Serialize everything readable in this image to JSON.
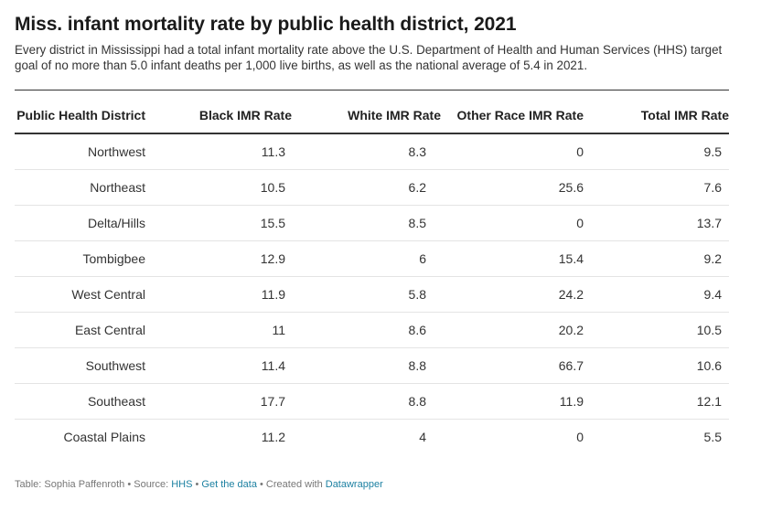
{
  "chart_data": {
    "type": "table",
    "title": "Miss. infant mortality rate by public health district, 2021",
    "subtitle": "Every district in Mississippi had a total infant mortality rate above the U.S. Department of Health and Human Services (HHS) target goal of no more than 5.0 infant deaths per 1,000 live births, as well as the national average of 5.4 in 2021.",
    "columns": [
      "Public Health District",
      "Black IMR Rate",
      "White IMR Rate",
      "Other Race IMR Rate",
      "Total IMR Rate"
    ],
    "rows": [
      [
        "Northwest",
        "11.3",
        "8.3",
        "0",
        "9.5"
      ],
      [
        "Northeast",
        "10.5",
        "6.2",
        "25.6",
        "7.6"
      ],
      [
        "Delta/Hills",
        "15.5",
        "8.5",
        "0",
        "13.7"
      ],
      [
        "Tombigbee",
        "12.9",
        "6",
        "15.4",
        "9.2"
      ],
      [
        "West Central",
        "11.9",
        "5.8",
        "24.2",
        "9.4"
      ],
      [
        "East Central",
        "11",
        "8.6",
        "20.2",
        "10.5"
      ],
      [
        "Southwest",
        "11.4",
        "8.8",
        "66.7",
        "10.6"
      ],
      [
        "Southeast",
        "17.7",
        "8.8",
        "11.9",
        "12.1"
      ],
      [
        "Coastal Plains",
        "11.2",
        "4",
        "0",
        "5.5"
      ]
    ]
  },
  "footer": {
    "prefix": "Table: Sophia Paffenroth • Source: ",
    "source": "HHS",
    "sep1": " • ",
    "get_data": "Get the data",
    "sep2": " • Created with ",
    "tool": "Datawrapper"
  }
}
